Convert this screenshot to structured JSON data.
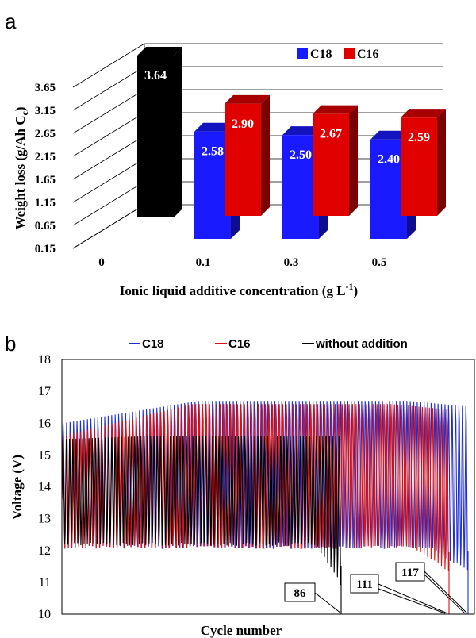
{
  "chart_data": [
    {
      "panel": "a",
      "type": "bar",
      "xlabel": "Ionic liquid additive concentration (g L",
      "xlabel_sup": "-1",
      "xlabel_close": ")",
      "ylabel": "Weight loss (g/Ah C",
      "ylabel_sub": "c",
      "ylabel_close": ")",
      "ylim": [
        0.15,
        3.65
      ],
      "yticks": [
        "0.15",
        "0.65",
        "1.15",
        "1.65",
        "2.15",
        "2.65",
        "3.15",
        "3.65"
      ],
      "categories": [
        "0",
        "0.1",
        "0.3",
        "0.5"
      ],
      "bars": [
        {
          "category": "0",
          "series": "without addition",
          "value": 3.64,
          "label": "3.64",
          "color": "#000000"
        },
        {
          "category": "0.1",
          "series": "C18",
          "value": 2.58,
          "label": "2.58",
          "color": "#1a1aff"
        },
        {
          "category": "0.1",
          "series": "C16",
          "value": 2.9,
          "label": "2.90",
          "color": "#e00000"
        },
        {
          "category": "0.3",
          "series": "C18",
          "value": 2.5,
          "label": "2.50",
          "color": "#1a1aff"
        },
        {
          "category": "0.3",
          "series": "C16",
          "value": 2.67,
          "label": "2.67",
          "color": "#e00000"
        },
        {
          "category": "0.5",
          "series": "C18",
          "value": 2.4,
          "label": "2.40",
          "color": "#1a1aff"
        },
        {
          "category": "0.5",
          "series": "C16",
          "value": 2.59,
          "label": "2.59",
          "color": "#e00000"
        }
      ],
      "legend": [
        {
          "name": "C18",
          "color": "#1a1aff"
        },
        {
          "name": "C16",
          "color": "#e00000"
        }
      ],
      "legend_position": "top-right",
      "style": "3D"
    },
    {
      "panel": "b",
      "type": "line",
      "xlabel": "Cycle number",
      "ylabel": "Voltage (V)",
      "ylim": [
        10,
        18
      ],
      "yticks": [
        "10",
        "11",
        "12",
        "13",
        "14",
        "15",
        "16",
        "17",
        "18"
      ],
      "series": [
        {
          "name": "C18",
          "color": "#1f2fd0",
          "cycles": 117,
          "charge_end_voltage": [
            16.0,
            16.7
          ],
          "discharge_end_voltage": 12.1
        },
        {
          "name": "C16",
          "color": "#e01010",
          "cycles": 111,
          "charge_end_voltage": [
            15.6,
            16.6
          ],
          "discharge_end_voltage": 12.1
        },
        {
          "name": "without addition",
          "color": "#000000",
          "cycles": 86,
          "charge_end_voltage": [
            15.5,
            15.6
          ],
          "discharge_end_voltage": 12.2
        }
      ],
      "annotations": [
        "86",
        "111",
        "117"
      ],
      "legend_position": "top"
    }
  ],
  "colors": {
    "black_bar_front": "#000000",
    "blue_bar_front": "#1a1aff",
    "red_bar_front": "#e00000"
  }
}
